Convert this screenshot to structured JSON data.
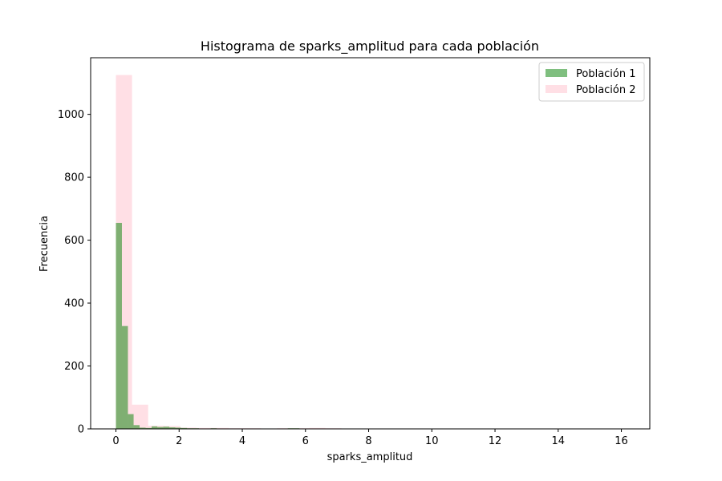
{
  "chart_data": {
    "type": "bar",
    "title": "Histograma de sparks_amplitud para cada población",
    "xlabel": "sparks_amplitud",
    "ylabel": "Frecuencia",
    "xlim": [
      -0.8,
      16.9
    ],
    "ylim": [
      0,
      1180
    ],
    "xticks": [
      0,
      2,
      4,
      6,
      8,
      10,
      12,
      14,
      16
    ],
    "yticks": [
      0,
      200,
      400,
      600,
      800,
      1000
    ],
    "legend_position": "upper-right",
    "grid": false,
    "series": [
      {
        "name": "Población 1",
        "color": "#008000",
        "opacity": 0.5,
        "bins": [
          {
            "x0": 0.0,
            "x1": 0.19,
            "count": 655
          },
          {
            "x0": 0.19,
            "x1": 0.38,
            "count": 327
          },
          {
            "x0": 0.38,
            "x1": 0.56,
            "count": 47
          },
          {
            "x0": 0.56,
            "x1": 0.75,
            "count": 12
          },
          {
            "x0": 0.75,
            "x1": 0.94,
            "count": 4
          },
          {
            "x0": 0.94,
            "x1": 1.13,
            "count": 3
          },
          {
            "x0": 1.13,
            "x1": 1.31,
            "count": 8
          },
          {
            "x0": 1.31,
            "x1": 1.5,
            "count": 6
          },
          {
            "x0": 1.5,
            "x1": 1.69,
            "count": 7
          },
          {
            "x0": 1.69,
            "x1": 1.88,
            "count": 5
          },
          {
            "x0": 1.88,
            "x1": 2.06,
            "count": 4
          },
          {
            "x0": 2.06,
            "x1": 2.25,
            "count": 3
          },
          {
            "x0": 2.25,
            "x1": 2.44,
            "count": 2
          },
          {
            "x0": 2.44,
            "x1": 2.63,
            "count": 2
          },
          {
            "x0": 2.63,
            "x1": 2.81,
            "count": 1
          },
          {
            "x0": 2.81,
            "x1": 3.0,
            "count": 1
          },
          {
            "x0": 3.0,
            "x1": 3.19,
            "count": 2
          },
          {
            "x0": 3.19,
            "x1": 3.38,
            "count": 1
          },
          {
            "x0": 3.94,
            "x1": 4.13,
            "count": 1
          },
          {
            "x0": 5.44,
            "x1": 5.63,
            "count": 2
          },
          {
            "x0": 5.63,
            "x1": 5.81,
            "count": 2
          }
        ]
      },
      {
        "name": "Población 2",
        "color": "#ffc0cb",
        "opacity": 0.5,
        "bins": [
          {
            "x0": 0.0,
            "x1": 0.51,
            "count": 1125
          },
          {
            "x0": 0.51,
            "x1": 1.02,
            "count": 77
          },
          {
            "x0": 1.02,
            "x1": 1.53,
            "count": 10
          },
          {
            "x0": 1.53,
            "x1": 2.04,
            "count": 9
          },
          {
            "x0": 2.04,
            "x1": 2.55,
            "count": 4
          },
          {
            "x0": 2.55,
            "x1": 3.06,
            "count": 3
          },
          {
            "x0": 3.06,
            "x1": 3.57,
            "count": 3
          },
          {
            "x0": 3.57,
            "x1": 4.08,
            "count": 2
          },
          {
            "x0": 4.08,
            "x1": 4.59,
            "count": 2
          },
          {
            "x0": 4.59,
            "x1": 5.1,
            "count": 1
          },
          {
            "x0": 5.1,
            "x1": 5.61,
            "count": 2
          },
          {
            "x0": 5.61,
            "x1": 6.12,
            "count": 2
          },
          {
            "x0": 6.12,
            "x1": 6.63,
            "count": 3
          },
          {
            "x0": 6.63,
            "x1": 7.14,
            "count": 2
          },
          {
            "x0": 7.14,
            "x1": 7.65,
            "count": 1
          },
          {
            "x0": 7.65,
            "x1": 8.16,
            "count": 1
          },
          {
            "x0": 10.2,
            "x1": 10.71,
            "count": 1
          },
          {
            "x0": 15.81,
            "x1": 16.32,
            "count": 1
          }
        ]
      }
    ]
  }
}
